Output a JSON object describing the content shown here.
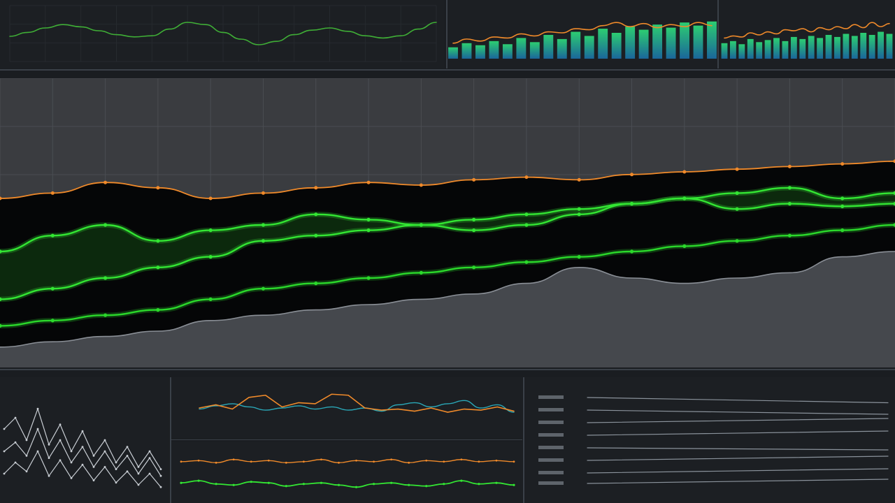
{
  "chart_data": [
    {
      "type": "line",
      "title": "",
      "xlabel": "",
      "ylabel": "",
      "x": [
        0,
        1,
        2,
        3,
        4,
        5,
        6,
        7,
        8,
        9,
        10,
        11,
        12,
        13,
        14,
        15,
        16,
        17,
        18,
        19,
        20,
        21,
        22,
        23,
        24
      ],
      "series": [
        {
          "values": [
            45,
            52,
            60,
            66,
            62,
            55,
            48,
            44,
            46,
            58,
            70,
            66,
            52,
            40,
            30,
            36,
            48,
            56,
            60,
            54,
            46,
            42,
            46,
            58,
            70
          ]
        }
      ],
      "ylim": [
        0,
        100
      ],
      "colors": [
        "#3fae36"
      ]
    },
    {
      "type": "line",
      "title": "",
      "x": [
        0,
        1,
        2,
        3,
        4,
        5,
        6,
        7,
        8,
        9,
        10,
        11,
        12,
        13,
        14,
        15,
        16,
        17,
        18,
        19
      ],
      "bars": [
        22,
        30,
        26,
        34,
        28,
        40,
        32,
        46,
        38,
        52,
        44,
        58,
        50,
        62,
        56,
        66,
        60,
        70,
        64,
        72
      ],
      "series": [
        {
          "values": [
            30,
            38,
            34,
            42,
            40,
            48,
            44,
            52,
            50,
            58,
            56,
            64,
            70,
            62,
            68,
            60,
            66,
            62,
            70,
            64
          ]
        }
      ],
      "ylim": [
        0,
        100
      ],
      "colors": [
        "#f08a2a",
        "#18c2a8"
      ]
    },
    {
      "type": "line",
      "title": "",
      "x": [
        0,
        1,
        2,
        3,
        4,
        5,
        6,
        7,
        8,
        9,
        10,
        11,
        12,
        13,
        14,
        15,
        16,
        17,
        18,
        19
      ],
      "bars": [
        30,
        34,
        28,
        38,
        32,
        36,
        40,
        34,
        42,
        38,
        44,
        40,
        46,
        42,
        48,
        44,
        50,
        46,
        52,
        48
      ],
      "series": [
        {
          "values": [
            40,
            44,
            42,
            50,
            46,
            52,
            48,
            56,
            54,
            58,
            52,
            60,
            56,
            62,
            58,
            66,
            60,
            70,
            62,
            68
          ]
        }
      ],
      "ylim": [
        0,
        100
      ],
      "colors": [
        "#f08a2a",
        "#18c2a8"
      ]
    },
    {
      "type": "area",
      "title": "",
      "xlabel": "",
      "ylabel": "",
      "x": [
        0,
        1,
        2,
        3,
        4,
        5,
        6,
        7,
        8,
        9,
        10,
        11,
        12,
        13,
        14,
        15,
        16,
        17
      ],
      "series": [
        {
          "values": [
            60,
            62,
            66,
            64,
            60,
            62,
            64,
            66,
            65,
            67,
            68,
            67,
            69,
            70,
            71,
            72,
            73,
            74
          ]
        },
        {
          "values": [
            40,
            46,
            50,
            44,
            48,
            50,
            54,
            52,
            50,
            48,
            50,
            54,
            58,
            60,
            56,
            58,
            57,
            58
          ]
        },
        {
          "values": [
            22,
            26,
            30,
            34,
            38,
            44,
            46,
            48,
            50,
            52,
            54,
            56,
            58,
            60,
            62,
            64,
            60,
            62
          ]
        },
        {
          "values": [
            12,
            14,
            16,
            18,
            22,
            26,
            28,
            30,
            32,
            34,
            36,
            38,
            40,
            42,
            44,
            46,
            48,
            50
          ]
        },
        {
          "values": [
            4,
            6,
            8,
            10,
            14,
            16,
            18,
            20,
            22,
            24,
            28,
            34,
            30,
            28,
            30,
            32,
            38,
            40
          ]
        }
      ],
      "ylim": [
        0,
        100
      ],
      "grid": true,
      "colors": [
        "#f08a2a",
        "#33e633",
        "#33e633",
        "#2bd92b",
        "#8a8f96"
      ]
    },
    {
      "type": "line",
      "title": "",
      "x": [
        0,
        1,
        2,
        3,
        4,
        5,
        6,
        7,
        8,
        9,
        10,
        11,
        12,
        13,
        14
      ],
      "series": [
        {
          "values": [
            60,
            70,
            50,
            78,
            46,
            64,
            40,
            58,
            36,
            50,
            30,
            44,
            26,
            40,
            24
          ]
        },
        {
          "values": [
            40,
            48,
            36,
            60,
            34,
            50,
            30,
            44,
            26,
            40,
            24,
            36,
            20,
            34,
            18
          ]
        },
        {
          "values": [
            20,
            30,
            22,
            40,
            18,
            32,
            16,
            28,
            14,
            26,
            12,
            22,
            10,
            20,
            8
          ]
        }
      ],
      "ylim": [
        0,
        100
      ],
      "colors": [
        "#c9ced4",
        "#c9ced4",
        "#c9ced4"
      ]
    },
    {
      "type": "line",
      "title": "",
      "x": [
        0,
        1,
        2,
        3,
        4,
        5,
        6,
        7,
        8,
        9,
        10,
        11,
        12,
        13,
        14,
        15,
        16,
        17,
        18,
        19
      ],
      "series": [
        {
          "values": [
            50,
            56,
            48,
            70,
            74,
            52,
            60,
            58,
            76,
            74,
            50,
            46,
            48,
            44,
            50,
            42,
            48,
            46,
            52,
            44
          ]
        },
        {
          "values": [
            48,
            54,
            58,
            52,
            46,
            50,
            54,
            48,
            52,
            46,
            50,
            44,
            56,
            60,
            52,
            58,
            64,
            50,
            56,
            42
          ]
        }
      ],
      "ylim": [
        0,
        100
      ],
      "colors": [
        "#f08a2a",
        "#2aa8b8"
      ]
    },
    {
      "type": "line",
      "title": "",
      "x": [
        0,
        1,
        2,
        3,
        4,
        5,
        6,
        7,
        8,
        9,
        10,
        11,
        12,
        13,
        14,
        15,
        16,
        17,
        18,
        19
      ],
      "series": [
        {
          "values": [
            70,
            72,
            68,
            74,
            70,
            72,
            68,
            70,
            74,
            68,
            72,
            70,
            74,
            68,
            72,
            70,
            74,
            70,
            72,
            70
          ]
        },
        {
          "values": [
            30,
            34,
            28,
            26,
            32,
            30,
            24,
            28,
            30,
            26,
            22,
            28,
            30,
            26,
            24,
            28,
            34,
            28,
            30,
            26
          ]
        }
      ],
      "ylim": [
        0,
        100
      ],
      "colors": [
        "#f08a2a",
        "#33e633"
      ]
    },
    {
      "type": "line",
      "title": "",
      "x": [
        0,
        1
      ],
      "series": [
        {
          "values": [
            90,
            85
          ]
        },
        {
          "values": [
            78,
            74
          ]
        },
        {
          "values": [
            66,
            70
          ]
        },
        {
          "values": [
            54,
            58
          ]
        },
        {
          "values": [
            42,
            40
          ]
        },
        {
          "values": [
            30,
            34
          ]
        },
        {
          "values": [
            18,
            22
          ]
        },
        {
          "values": [
            8,
            12
          ]
        }
      ],
      "ylim": [
        0,
        100
      ],
      "colors": [
        "#8a929b"
      ]
    }
  ],
  "labels": {
    "top_left_readout": "",
    "top_mid_readout": "",
    "top_right_readout": "",
    "main_readout_1": "",
    "main_readout_2": "",
    "main_readout_3": "",
    "main_readout_4": "",
    "main_readout_5": "",
    "bottom_left_readout": "",
    "bottom_mid_readout": "",
    "bottom_mid_readout_2": ""
  }
}
